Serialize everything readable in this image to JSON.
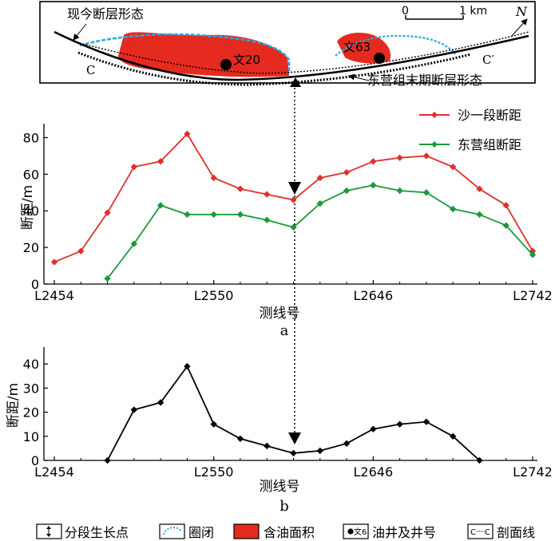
{
  "map": {
    "label_current_fault": "现今断层形态",
    "label_dongying_fault": "东营组末期断层形态",
    "label_c": "C",
    "label_c_prime": "C′",
    "scale_zero": "0",
    "scale_one": "1 km",
    "north": "N",
    "well_1": "文20",
    "well_2": "文63"
  },
  "chart_data": [
    {
      "id": "a",
      "type": "line",
      "caption": "a",
      "xlabel": "测线号",
      "ylabel": "断距/m",
      "ylim": [
        0,
        85
      ],
      "yticks": [
        0,
        20,
        40,
        60,
        80
      ],
      "xtick_labels": [
        "L2454",
        "L2550",
        "L2646",
        "L2742"
      ],
      "x": [
        2454,
        2470,
        2486,
        2502,
        2518,
        2534,
        2550,
        2566,
        2582,
        2598,
        2614,
        2630,
        2646,
        2662,
        2678,
        2694,
        2710,
        2726,
        2742
      ],
      "legend_position": "top-right",
      "series": [
        {
          "name": "沙一段断距",
          "color": "#e0302a",
          "values": [
            12,
            18,
            39,
            64,
            67,
            82,
            58,
            52,
            49,
            46,
            58,
            61,
            67,
            69,
            70,
            64,
            52,
            43,
            18
          ]
        },
        {
          "name": "东营组断距",
          "color": "#1a9a3c",
          "values": [
            null,
            null,
            3,
            22,
            43,
            38,
            38,
            38,
            35,
            31,
            44,
            51,
            54,
            51,
            50,
            41,
            38,
            32,
            16
          ]
        }
      ]
    },
    {
      "id": "b",
      "type": "line",
      "caption": "b",
      "xlabel": "测线号",
      "ylabel": "断距/m",
      "ylim": [
        0,
        45
      ],
      "yticks": [
        0,
        10,
        20,
        30,
        40
      ],
      "xtick_labels": [
        "L2454",
        "L2550",
        "L2646",
        "L2742"
      ],
      "x": [
        2454,
        2470,
        2486,
        2502,
        2518,
        2534,
        2550,
        2566,
        2582,
        2598,
        2614,
        2630,
        2646,
        2662,
        2678,
        2694,
        2710,
        2726,
        2742
      ],
      "series": [
        {
          "color": "#000000",
          "values": [
            null,
            null,
            0,
            21,
            24,
            39,
            15,
            9,
            6,
            3,
            4,
            7,
            13,
            15,
            16,
            10,
            0,
            null,
            null
          ]
        }
      ]
    }
  ],
  "legend_bottom": {
    "growth_point": "分段生长点",
    "closure": "圈闭",
    "oil_area": "含油面积",
    "well": "油井及井号",
    "section_line": "剖面线",
    "well_icon_text": "文6",
    "section_icon_text": "C"
  }
}
